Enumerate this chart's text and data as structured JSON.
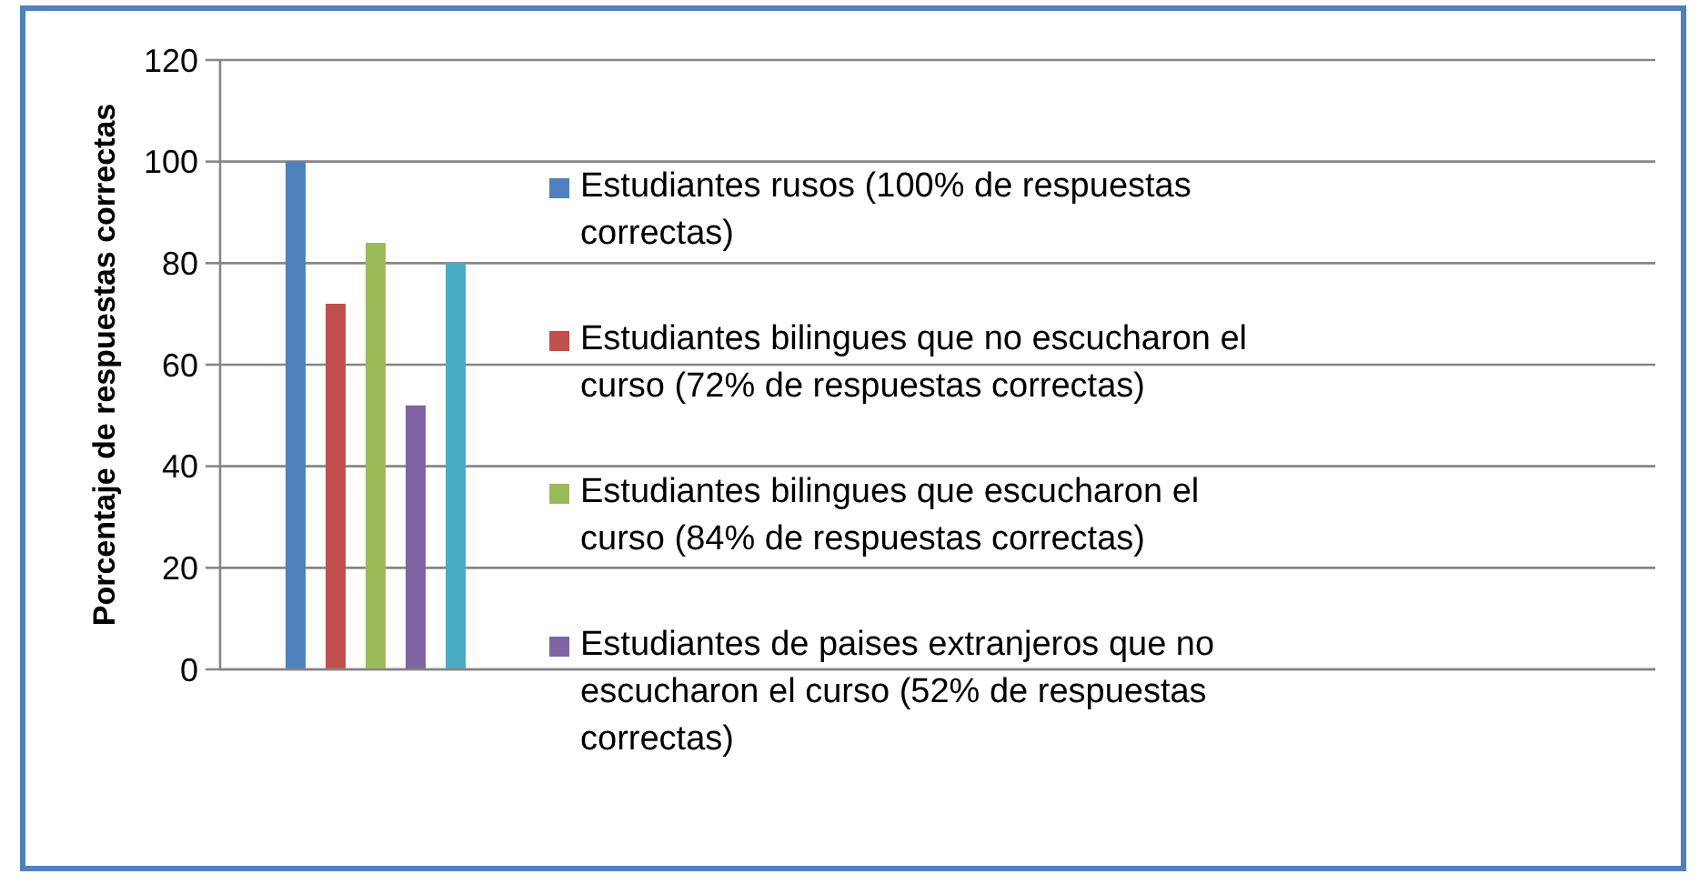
{
  "chart_data": {
    "type": "bar",
    "ylabel": "Porcentaje de respuestas correctas",
    "categories": [
      null
    ],
    "series": [
      {
        "name": "Estudiantes rusos (100% de respuestas correctas)",
        "color": "#4f81bd",
        "values": [
          100
        ]
      },
      {
        "name": "Estudiantes bilingues que no escucharon el curso (72% de respuestas correctas)",
        "color": "#c0504d",
        "values": [
          72
        ]
      },
      {
        "name": "Estudiantes bilingues que escucharon el curso (84% de respuestas correctas)",
        "color": "#9bbb59",
        "values": [
          84
        ]
      },
      {
        "name": "Estudiantes de paises extranjeros que no escucharon el curso (52% de respuestas correctas)",
        "color": "#8064a2",
        "values": [
          52
        ]
      },
      {
        "color": "#4bacc6",
        "values": [
          80
        ]
      }
    ],
    "ylim": [
      0,
      120
    ],
    "yticks": [
      0,
      20,
      40,
      60,
      80,
      100,
      120
    ],
    "grid": "y",
    "legend": "right"
  }
}
